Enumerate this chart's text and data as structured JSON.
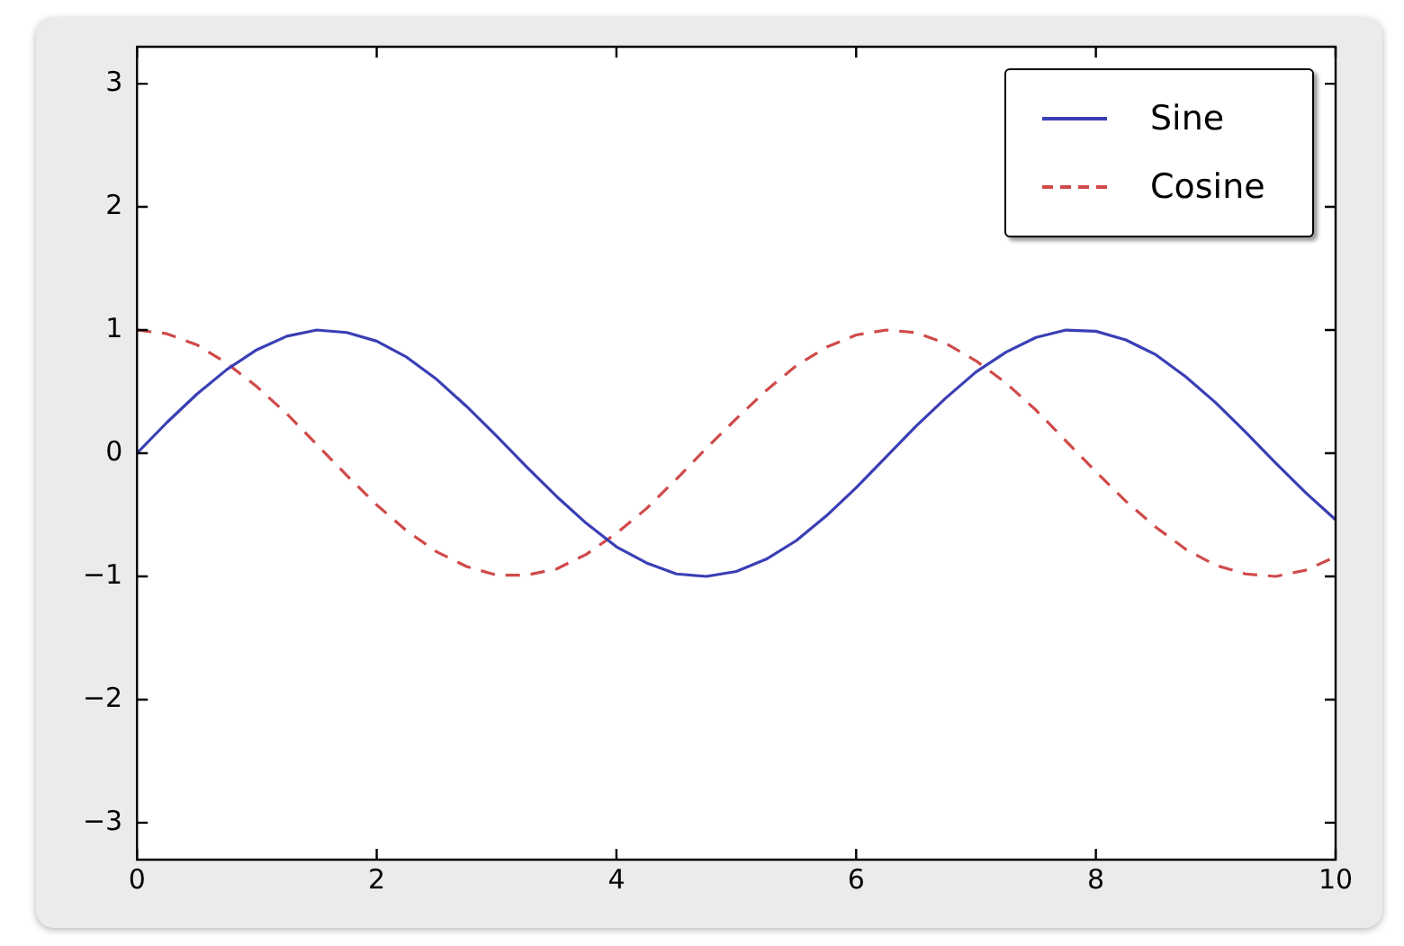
{
  "chart_data": {
    "type": "line",
    "x": [
      0,
      0.25,
      0.5,
      0.75,
      1,
      1.25,
      1.5,
      1.75,
      2,
      2.25,
      2.5,
      2.75,
      3,
      3.25,
      3.5,
      3.75,
      4,
      4.25,
      4.5,
      4.75,
      5,
      5.25,
      5.5,
      5.75,
      6,
      6.25,
      6.5,
      6.75,
      7,
      7.25,
      7.5,
      7.75,
      8,
      8.25,
      8.5,
      8.75,
      9,
      9.25,
      9.5,
      9.75,
      10
    ],
    "series": [
      {
        "name": "Sine",
        "color": "#3a3fb5",
        "line_style": "solid",
        "values": [
          0,
          0.25,
          0.48,
          0.68,
          0.84,
          0.95,
          1.0,
          0.98,
          0.91,
          0.78,
          0.6,
          0.38,
          0.14,
          -0.11,
          -0.35,
          -0.57,
          -0.76,
          -0.89,
          -0.98,
          -1.0,
          -0.96,
          -0.86,
          -0.71,
          -0.51,
          -0.28,
          -0.03,
          0.22,
          0.45,
          0.66,
          0.82,
          0.94,
          1.0,
          0.99,
          0.92,
          0.8,
          0.62,
          0.41,
          0.17,
          -0.08,
          -0.32,
          -0.54
        ]
      },
      {
        "name": "Cosine",
        "color": "#d04a4a",
        "line_style": "dashed",
        "values": [
          1.0,
          0.97,
          0.88,
          0.73,
          0.54,
          0.32,
          0.07,
          -0.18,
          -0.42,
          -0.63,
          -0.8,
          -0.92,
          -0.99,
          -0.99,
          -0.94,
          -0.82,
          -0.65,
          -0.45,
          -0.21,
          0.04,
          0.28,
          0.51,
          0.71,
          0.86,
          0.96,
          1.0,
          0.98,
          0.89,
          0.75,
          0.57,
          0.35,
          0.1,
          -0.15,
          -0.39,
          -0.6,
          -0.78,
          -0.91,
          -0.98,
          -1.0,
          -0.95,
          -0.84
        ]
      }
    ],
    "xlim": [
      0,
      10
    ],
    "xticks": [
      0,
      2,
      4,
      6,
      8,
      10
    ],
    "ylim": [
      -3.3,
      3.3
    ],
    "yticks": [
      {
        "value": -3,
        "label": "−3"
      },
      {
        "value": -2,
        "label": "−2"
      },
      {
        "value": -1,
        "label": "−1"
      },
      0,
      1,
      2,
      3
    ],
    "grid": false,
    "legend": "top right",
    "marker": "none"
  }
}
